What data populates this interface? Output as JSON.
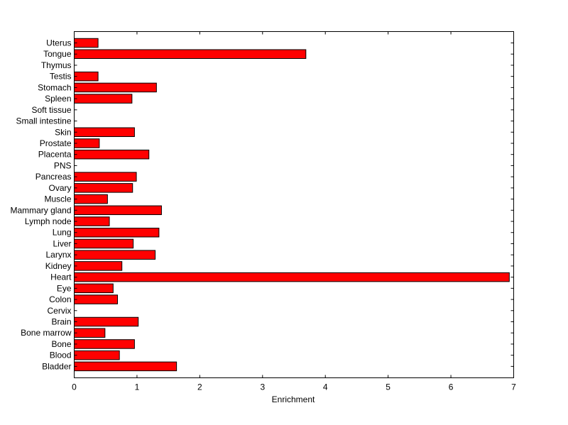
{
  "chart_data": {
    "type": "bar",
    "orientation": "horizontal",
    "title": "",
    "xlabel": "Enrichment",
    "ylabel": "",
    "xlim": [
      0,
      7
    ],
    "x_ticks": [
      0,
      1,
      2,
      3,
      4,
      5,
      6,
      7
    ],
    "grid": false,
    "bar_color": "#ff0000",
    "bar_edge_color": "#000000",
    "categories": [
      "Uterus",
      "Tongue",
      "Thymus",
      "Testis",
      "Stomach",
      "Spleen",
      "Soft tissue",
      "Small intestine",
      "Skin",
      "Prostate",
      "Placenta",
      "PNS",
      "Pancreas",
      "Ovary",
      "Muscle",
      "Mammary gland",
      "Lymph node",
      "Lung",
      "Liver",
      "Larynx",
      "Kidney",
      "Heart",
      "Eye",
      "Colon",
      "Cervix",
      "Brain",
      "Bone marrow",
      "Bone",
      "Blood",
      "Bladder"
    ],
    "values": [
      0.38,
      3.69,
      0,
      0.38,
      1.31,
      0.92,
      0,
      0,
      0.96,
      0.4,
      1.19,
      0,
      0.99,
      0.93,
      0.53,
      1.39,
      0.56,
      1.35,
      0.94,
      1.29,
      0.76,
      6.93,
      0.62,
      0.69,
      0,
      1.02,
      0.49,
      0.96,
      0.72,
      1.63
    ]
  }
}
